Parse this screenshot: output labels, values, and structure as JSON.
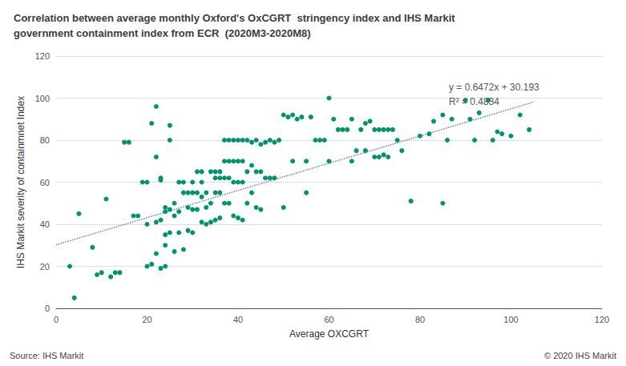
{
  "chart_data": {
    "type": "scatter",
    "title": "Correlation between average monthly Oxford's OxCGRT  stringency index and IHS Markit\ngovernment containment index from ECR  (2020M3-2020M8)",
    "xlabel": "Average OXCGRT",
    "ylabel": "IHS Markit severity of containmnet Index",
    "xlim": [
      0,
      120
    ],
    "ylim": [
      0,
      120
    ],
    "xticks": [
      0,
      20,
      40,
      60,
      80,
      100,
      120
    ],
    "yticks": [
      0,
      20,
      40,
      60,
      80,
      100,
      120
    ],
    "grid": "y",
    "annotations": [
      "y = 0.6472x + 30.193",
      "R² = 0.4834"
    ],
    "footer": [
      "Source: IHS Markit",
      "© 2020 IHS Markit"
    ],
    "series": [
      {
        "type": "scatter",
        "color": "#00936c",
        "marker": "circle",
        "x": [
          3,
          4,
          5,
          8,
          9,
          10,
          11,
          12,
          13,
          14,
          15,
          16,
          17,
          18,
          19,
          20,
          20,
          20,
          21,
          21,
          22,
          22,
          22,
          22,
          23,
          23,
          23,
          23,
          24,
          24,
          24,
          24,
          24,
          25,
          25,
          25,
          25,
          26,
          26,
          26,
          27,
          27,
          27,
          28,
          28,
          28,
          29,
          29,
          29,
          30,
          30,
          30,
          30,
          31,
          31,
          31,
          32,
          32,
          32,
          32,
          33,
          33,
          33,
          34,
          34,
          34,
          35,
          35,
          35,
          35,
          36,
          36,
          36,
          36,
          37,
          37,
          37,
          37,
          38,
          38,
          38,
          38,
          39,
          39,
          39,
          39,
          40,
          40,
          40,
          40,
          41,
          41,
          41,
          41,
          42,
          42,
          42,
          43,
          43,
          43,
          44,
          44,
          44,
          45,
          45,
          45,
          46,
          46,
          47,
          47,
          48,
          48,
          49,
          50,
          50,
          51,
          52,
          52,
          53,
          54,
          55,
          55,
          56,
          57,
          58,
          59,
          60,
          60,
          61,
          62,
          63,
          64,
          65,
          65,
          66,
          67,
          68,
          68,
          69,
          70,
          70,
          71,
          71,
          72,
          72,
          73,
          73,
          74,
          75,
          76,
          78,
          80,
          82,
          83,
          85,
          85,
          86,
          87,
          90,
          91,
          92,
          93,
          95,
          96,
          97,
          98,
          100,
          102,
          104
        ],
        "values": [
          20,
          5,
          45,
          29,
          16,
          17,
          52,
          15,
          17,
          17,
          79,
          79,
          44,
          44,
          60,
          60,
          40,
          20,
          21,
          88,
          96,
          41,
          72,
          26,
          62,
          61,
          42,
          19,
          48,
          46,
          35,
          30,
          20,
          87,
          80,
          47,
          36,
          50,
          44,
          27,
          60,
          46,
          36,
          60,
          55,
          28,
          55,
          48,
          37,
          60,
          55,
          47,
          36,
          65,
          55,
          47,
          65,
          60,
          53,
          41,
          55,
          48,
          40,
          65,
          50,
          41,
          65,
          62,
          55,
          42,
          65,
          62,
          55,
          43,
          80,
          70,
          62,
          50,
          80,
          70,
          62,
          50,
          80,
          70,
          60,
          44,
          80,
          70,
          60,
          43,
          80,
          70,
          60,
          42,
          80,
          65,
          50,
          79,
          68,
          55,
          80,
          65,
          48,
          78,
          65,
          47,
          79,
          62,
          80,
          62,
          79,
          62,
          80,
          92,
          48,
          91,
          92,
          70,
          90,
          91,
          70,
          55,
          91,
          80,
          80,
          80,
          100,
          70,
          90,
          85,
          85,
          85,
          90,
          70,
          75,
          85,
          88,
          75,
          89,
          85,
          72,
          85,
          72,
          85,
          73,
          85,
          72,
          85,
          80,
          75,
          51,
          82,
          83,
          89,
          92,
          50,
          80,
          90,
          99,
          90,
          80,
          93,
          99,
          80,
          84,
          83,
          82,
          92,
          85
        ]
      },
      {
        "type": "line",
        "color": "#6b7ab5",
        "line_style": "dotted",
        "x": [
          0,
          105
        ],
        "values": [
          30.193,
          98.149
        ]
      }
    ]
  }
}
